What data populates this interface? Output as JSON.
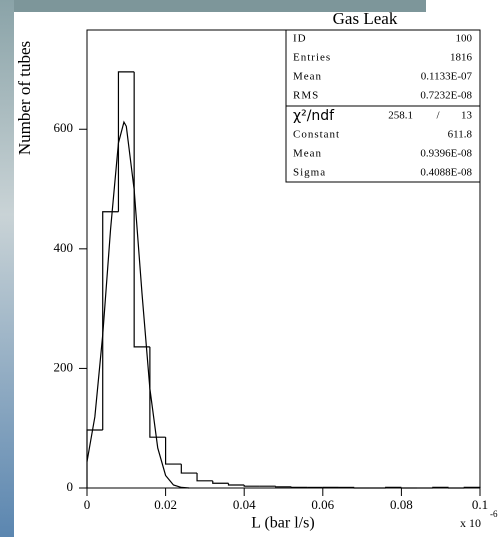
{
  "chart_data": {
    "type": "histogram",
    "title": "Gas Leak",
    "y_label": "Number of tubes",
    "x_label": "L (bar l/s)",
    "x_multiplier": "x 10",
    "x_multiplier_exponent": "-6",
    "xlim": [
      0,
      0.1
    ],
    "ylim": [
      0,
      766
    ],
    "xticks": [
      0,
      0.02,
      0.04,
      0.06,
      0.08,
      0.1
    ],
    "yticks": [
      0,
      200,
      400,
      600
    ],
    "bins": [
      0,
      0.004,
      0.008,
      0.012,
      0.016,
      0.02,
      0.024,
      0.028,
      0.032,
      0.036,
      0.04,
      0.044,
      0.048,
      0.052,
      0.056,
      0.06,
      0.064,
      0.068,
      0.072,
      0.076,
      0.08,
      0.084,
      0.088,
      0.092,
      0.096,
      0.1
    ],
    "values": [
      97,
      462,
      696,
      236,
      85,
      40,
      25,
      12,
      8,
      5,
      3,
      3,
      2,
      1,
      1,
      1,
      1,
      0,
      0,
      1,
      0,
      0,
      1,
      0,
      1
    ],
    "color": "#000000",
    "fit": {
      "x": [
        0,
        0.002,
        0.004,
        0.006,
        0.008,
        0.0094,
        0.01,
        0.012,
        0.014,
        0.016,
        0.018,
        0.02,
        0.022,
        0.024,
        0.026
      ],
      "values": [
        44,
        119,
        256,
        433,
        577,
        612,
        605,
        499,
        325,
        166,
        67,
        21,
        5,
        1,
        0
      ]
    },
    "stats": {
      "rows": [
        [
          "ID",
          "100"
        ],
        [
          "Entries",
          "1816"
        ],
        [
          "Mean",
          "0.1133E-07"
        ],
        [
          "RMS",
          "0.7232E-08"
        ]
      ],
      "fit_header": [
        "χ²/ndf",
        "258.1",
        "/",
        "13"
      ],
      "fit_rows": [
        [
          "Constant",
          "611.8"
        ],
        [
          "Mean",
          "0.9396E-08"
        ],
        [
          "Sigma",
          "0.4088E-08"
        ]
      ]
    }
  }
}
